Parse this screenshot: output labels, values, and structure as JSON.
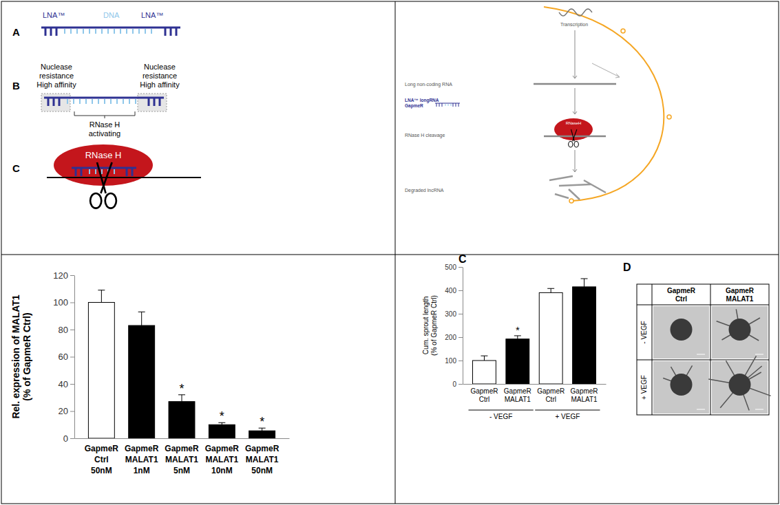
{
  "schematic": {
    "panel_a": {
      "label": "A",
      "segments": [
        "LNA™",
        "DNA",
        "LNA™"
      ]
    },
    "panel_b": {
      "label": "B",
      "wing_left": [
        "Nuclease",
        "resistance",
        "High affinity"
      ],
      "wing_right": [
        "Nuclease",
        "resistance",
        "High affinity"
      ],
      "center": [
        "RNase H",
        "activating"
      ]
    },
    "panel_c": {
      "label": "C",
      "enzyme": "RNase H"
    }
  },
  "mechanism": {
    "transcription": "Transcription",
    "lncrna": "Long non-coding RNA",
    "gapmer": [
      "LNA™ longRNA",
      "GapmeR"
    ],
    "cleavage": "RNase H cleavage",
    "enzyme": "RNaseH",
    "degraded": "Degraded lncRNA"
  },
  "chart_data": [
    {
      "type": "bar",
      "y_label": [
        "Rel. expression of MALAT1",
        "(% of GapmeR Ctrl)"
      ],
      "categories": [
        "GapmeR Ctrl 50nM",
        "GapmeR MALAT1 1nM",
        "GapmeR MALAT1 5nM",
        "GapmeR MALAT1 10nM",
        "GapmeR MALAT1 50nM"
      ],
      "values": [
        100,
        83,
        27,
        10,
        5.5
      ],
      "errors": [
        9,
        10,
        5,
        1.5,
        2
      ],
      "colors": [
        "#ffffff",
        "#000000",
        "#000000",
        "#000000",
        "#000000"
      ],
      "ylim": [
        0,
        120
      ],
      "yticks": [
        0,
        20,
        40,
        60,
        80,
        100,
        120
      ],
      "annotations": [
        {
          "category": "GapmeR MALAT1 5nM",
          "text": "*"
        },
        {
          "category": "GapmeR MALAT1 10nM",
          "text": "*"
        },
        {
          "category": "GapmeR MALAT1 50nM",
          "text": "*"
        }
      ]
    },
    {
      "type": "bar",
      "panel_label": "C",
      "y_label": [
        "Cum. sprout length",
        "(% of GapmeR Ctrl)"
      ],
      "categories": [
        "GapmeR Ctrl",
        "GapmeR MALAT1",
        "GapmeR Ctrl",
        "GapmeR MALAT1"
      ],
      "group_labels": [
        "- VEGF",
        "- VEGF",
        "+ VEGF",
        "+ VEGF"
      ],
      "values": [
        100,
        192,
        390,
        415
      ],
      "errors": [
        20,
        14,
        18,
        35
      ],
      "colors": [
        "#ffffff",
        "#000000",
        "#ffffff",
        "#000000"
      ],
      "ylim": [
        0,
        500
      ],
      "yticks": [
        0,
        100,
        200,
        300,
        400,
        500
      ],
      "annotations": [
        {
          "category_position": 1,
          "text": "*"
        }
      ]
    }
  ],
  "panel_d": {
    "label": "D",
    "columns": [
      "GapmeR Ctrl",
      "GapmeR MALAT1"
    ],
    "rows": [
      "- VEGF",
      "+ VEGF"
    ]
  }
}
